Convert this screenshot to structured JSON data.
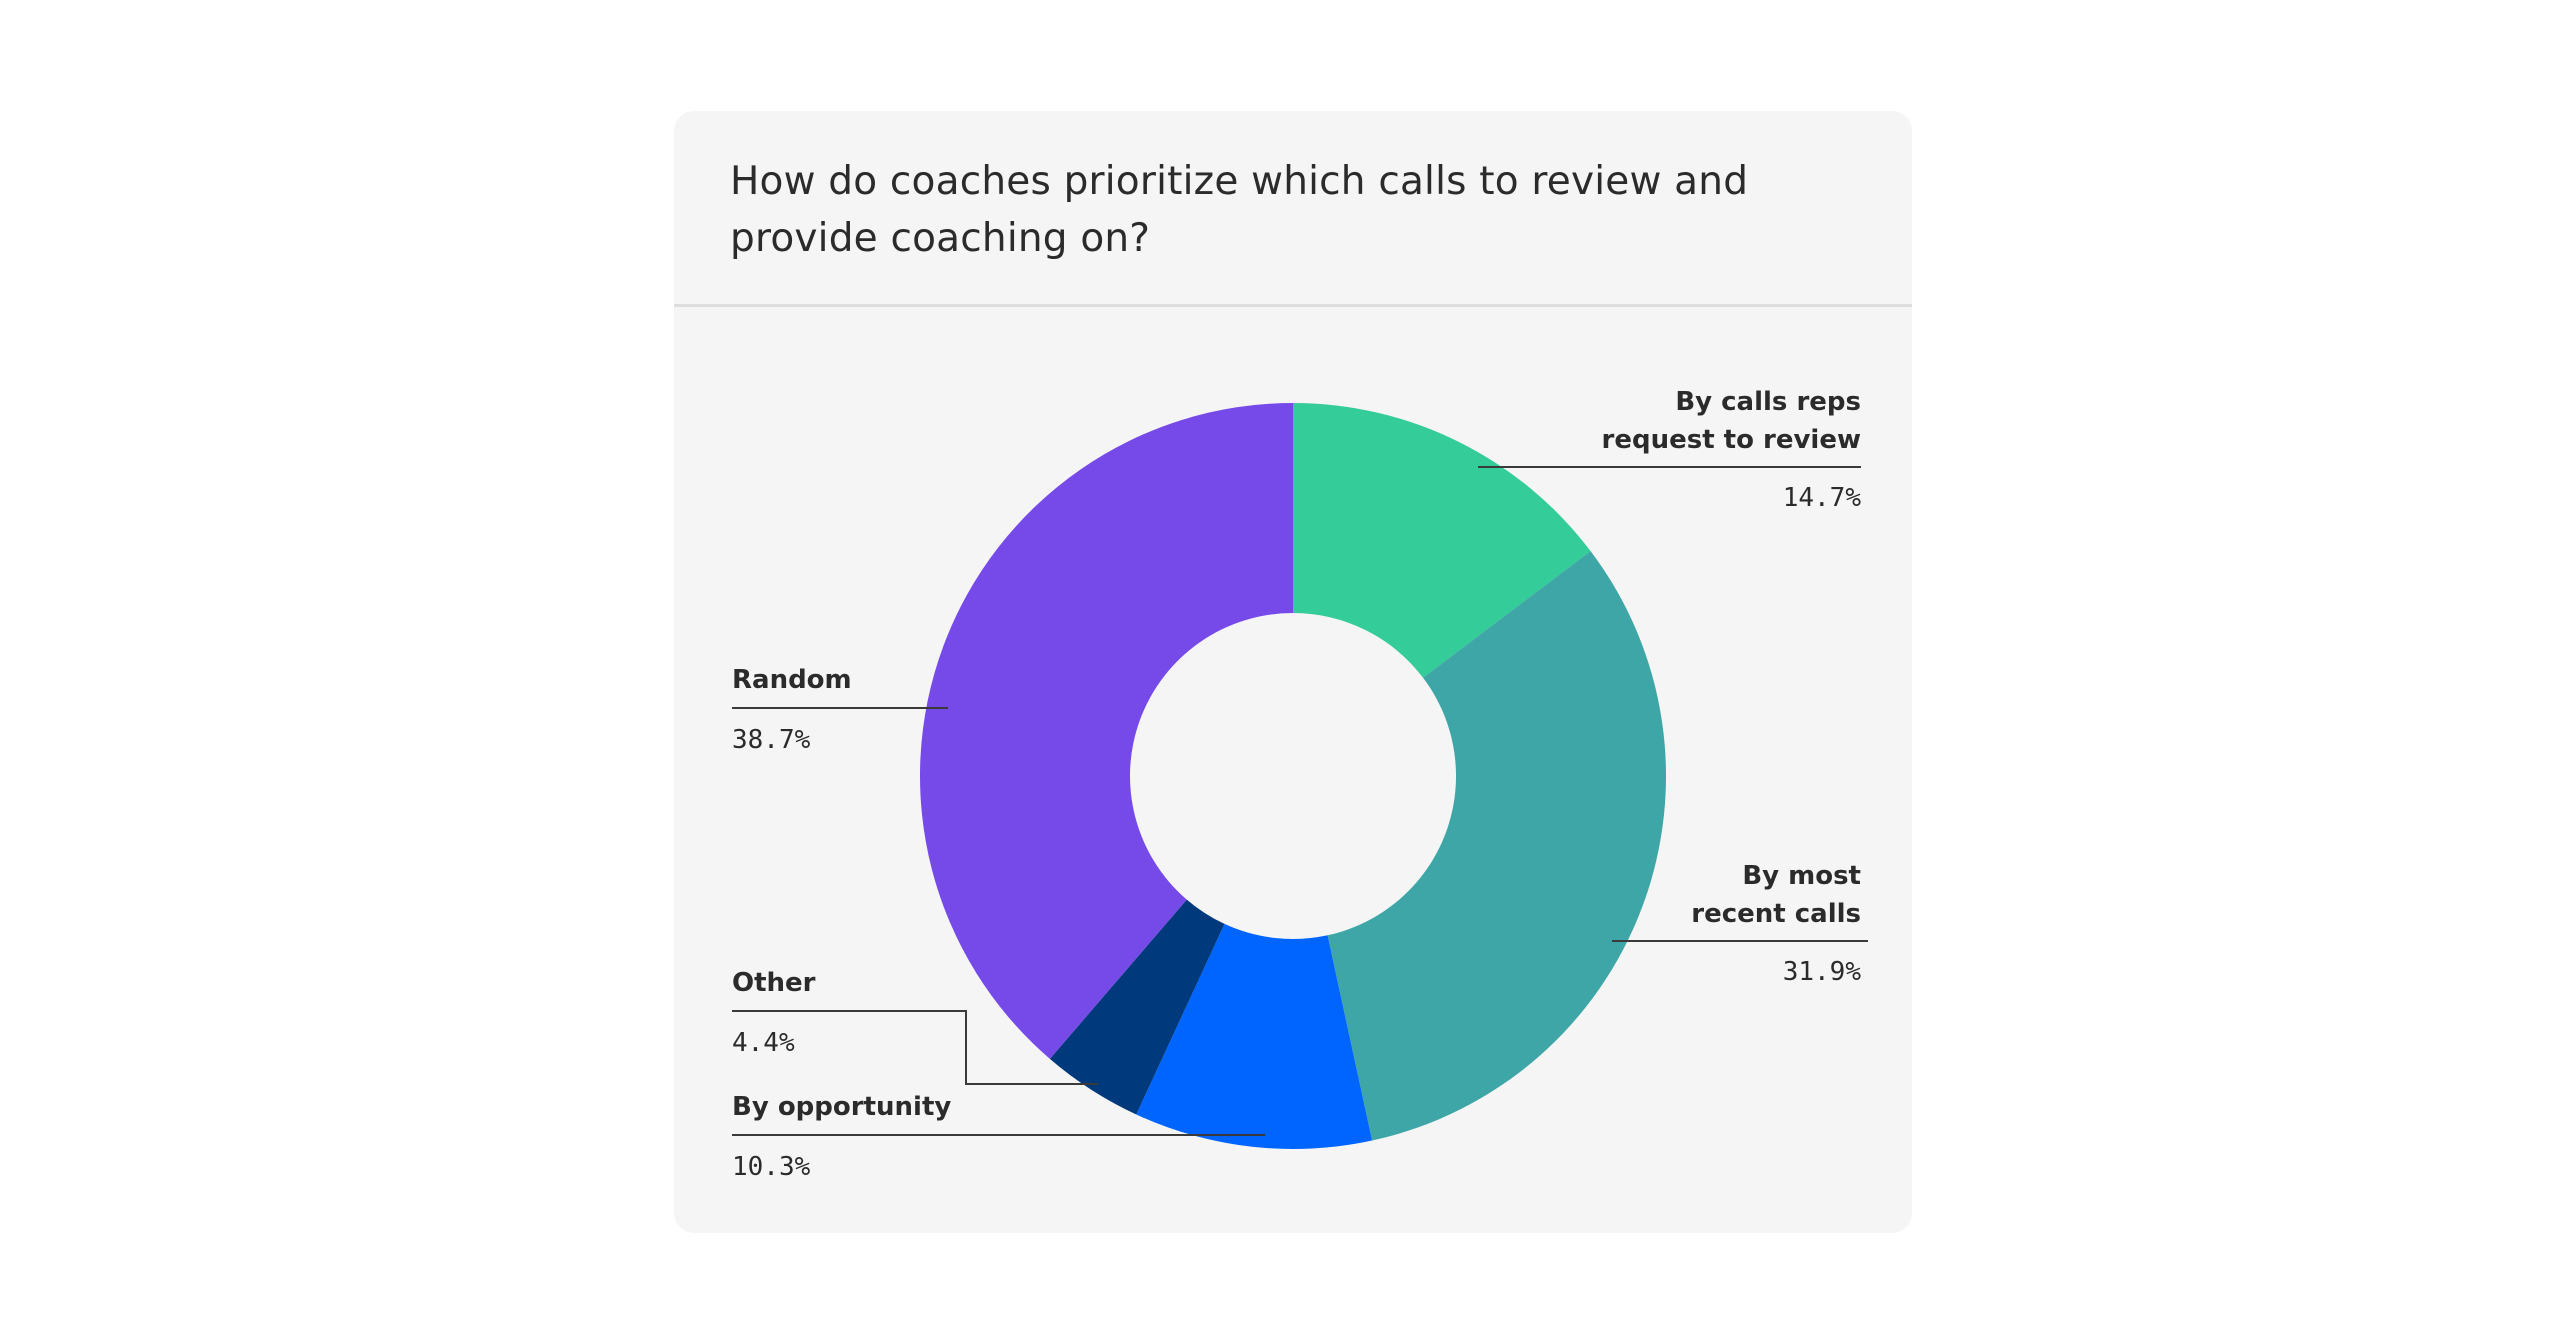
{
  "chart_data": {
    "type": "pie",
    "title": "How do coaches prioritize which calls to review and provide coaching on?",
    "donut": true,
    "slices": [
      {
        "label_lines": [
          "By calls reps",
          "request to review"
        ],
        "value": 14.7,
        "display": "14.7%",
        "color": "#34cc98"
      },
      {
        "label_lines": [
          "By most",
          "recent calls"
        ],
        "value": 31.9,
        "display": "31.9%",
        "color": "#3ea6a7"
      },
      {
        "label_lines": [
          "By opportunity"
        ],
        "value": 10.3,
        "display": "10.3%",
        "color": "#0065ff"
      },
      {
        "label_lines": [
          "Other"
        ],
        "value": 4.4,
        "display": "4.4%",
        "color": "#003a7d"
      },
      {
        "label_lines": [
          "Random"
        ],
        "value": 38.7,
        "display": "38.7%",
        "color": "#764ae8"
      }
    ]
  }
}
